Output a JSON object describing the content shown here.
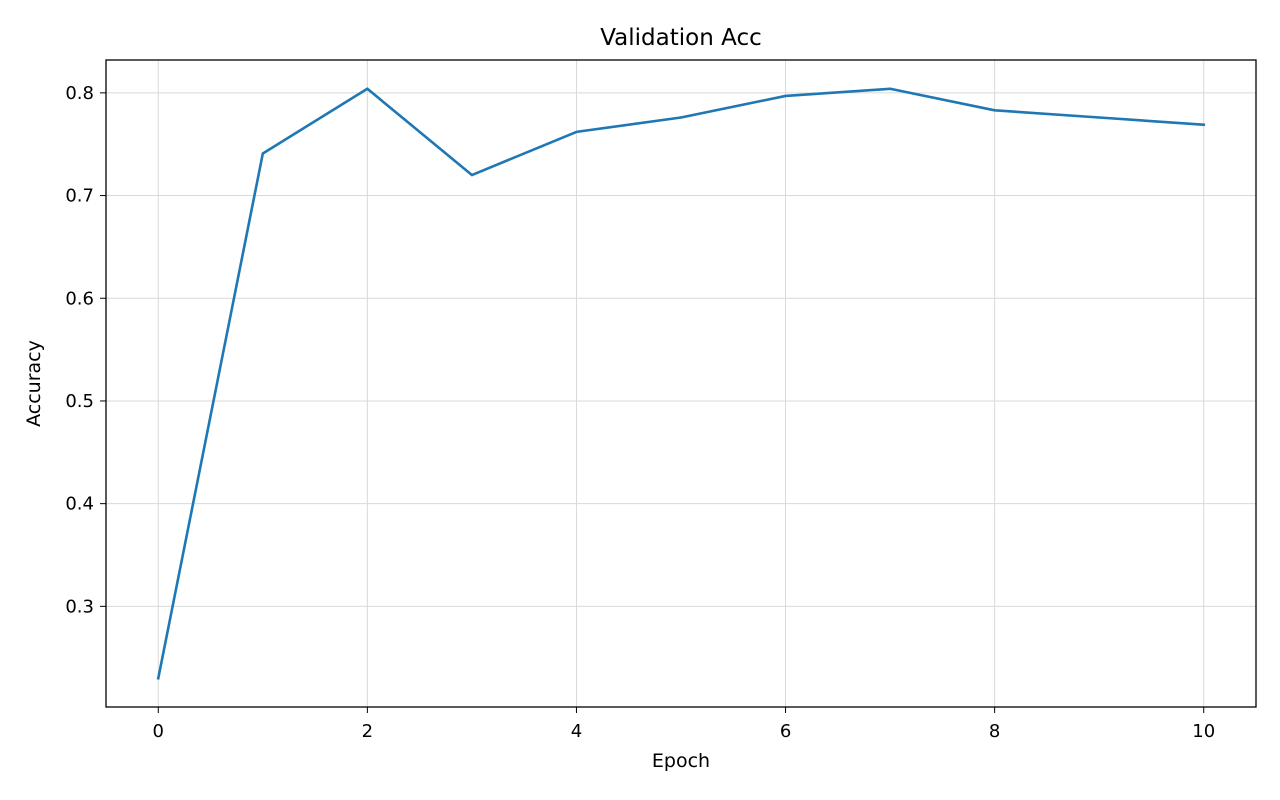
{
  "chart_data": {
    "type": "line",
    "title": "Validation Acc",
    "xlabel": "Epoch",
    "ylabel": "Accuracy",
    "xlim": [
      -0.5,
      10.5
    ],
    "ylim": [
      0.202,
      0.832
    ],
    "xticks": [
      0,
      2,
      4,
      6,
      8,
      10
    ],
    "yticks": [
      0.3,
      0.4,
      0.5,
      0.6,
      0.7,
      0.8
    ],
    "xtick_labels": [
      "0",
      "2",
      "4",
      "6",
      "8",
      "10"
    ],
    "ytick_labels": [
      "0.3",
      "0.4",
      "0.5",
      "0.6",
      "0.7",
      "0.8"
    ],
    "grid": true,
    "series": [
      {
        "color": "#1f77b4",
        "x": [
          0,
          1,
          2,
          3,
          4,
          5,
          6,
          7,
          8,
          9,
          10
        ],
        "y": [
          0.23,
          0.741,
          0.804,
          0.72,
          0.762,
          0.776,
          0.797,
          0.804,
          0.783,
          0.776,
          0.769
        ]
      }
    ]
  }
}
